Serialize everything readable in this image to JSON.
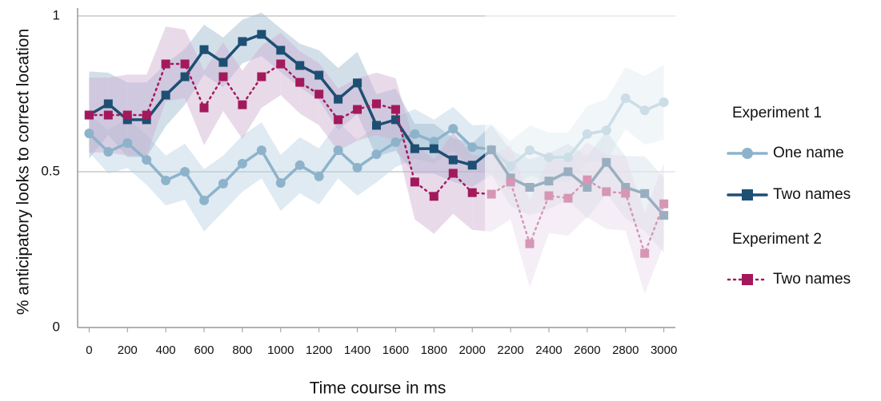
{
  "chart_data": {
    "type": "line",
    "y_label": "% anticipatory looks to correct location",
    "x_label": "Time course in ms",
    "legend_titles": [
      "Experiment 1",
      "Experiment 2"
    ],
    "x": [
      0,
      100,
      200,
      300,
      400,
      500,
      600,
      700,
      800,
      900,
      1000,
      1100,
      1200,
      1300,
      1400,
      1500,
      1600,
      1700,
      1800,
      1900,
      2000,
      2100,
      2200,
      2300,
      2400,
      2500,
      2600,
      2700,
      2800,
      2900,
      3000
    ],
    "series": [
      {
        "name": "One name",
        "color": "#8db3cb",
        "band_color": "#b9d1e3",
        "marker": "circle",
        "dashed": false,
        "values": [
          0.623,
          0.564,
          0.592,
          0.538,
          0.472,
          0.5,
          0.408,
          0.462,
          0.526,
          0.569,
          0.464,
          0.521,
          0.485,
          0.569,
          0.513,
          0.556,
          0.595,
          0.621,
          0.597,
          0.638,
          0.579,
          0.572,
          0.518,
          0.569,
          0.546,
          0.546,
          0.621,
          0.633,
          0.736,
          0.697,
          0.723
        ],
        "error": [
          0.06,
          0.07,
          0.08,
          0.08,
          0.08,
          0.09,
          0.1,
          0.09,
          0.09,
          0.09,
          0.09,
          0.09,
          0.09,
          0.09,
          0.09,
          0.09,
          0.08,
          0.08,
          0.07,
          0.07,
          0.07,
          0.08,
          0.08,
          0.08,
          0.08,
          0.08,
          0.09,
          0.1,
          0.1,
          0.11,
          0.12
        ]
      },
      {
        "name": "Two names",
        "color": "#1d4f73",
        "band_color": "#9cb8cf",
        "marker": "square",
        "dashed": false,
        "values": [
          0.682,
          0.718,
          0.667,
          0.667,
          0.746,
          0.805,
          0.892,
          0.851,
          0.918,
          0.941,
          0.89,
          0.841,
          0.81,
          0.733,
          0.785,
          0.649,
          0.667,
          0.574,
          0.574,
          0.538,
          0.521,
          0.57,
          0.48,
          0.45,
          0.47,
          0.5,
          0.45,
          0.53,
          0.45,
          0.43,
          0.36
        ],
        "error": [
          0.14,
          0.1,
          0.12,
          0.12,
          0.1,
          0.09,
          0.08,
          0.08,
          0.07,
          0.07,
          0.07,
          0.07,
          0.08,
          0.1,
          0.1,
          0.1,
          0.1,
          0.08,
          0.08,
          0.07,
          0.07,
          0.08,
          0.09,
          0.09,
          0.09,
          0.09,
          0.1,
          0.1,
          0.1,
          0.12,
          0.12
        ]
      },
      {
        "name": "Two names",
        "color": "#a3195b",
        "band_color": "#cfaed0",
        "marker": "square",
        "dashed": true,
        "values": [
          0.682,
          0.682,
          0.682,
          0.682,
          0.846,
          0.846,
          0.705,
          0.805,
          0.715,
          0.805,
          0.846,
          0.787,
          0.749,
          0.667,
          0.7,
          0.718,
          0.7,
          0.467,
          0.421,
          0.495,
          0.433,
          0.428,
          0.467,
          0.269,
          0.423,
          0.415,
          0.474,
          0.436,
          0.431,
          0.238,
          0.397
        ],
        "error": [
          0.12,
          0.12,
          0.13,
          0.13,
          0.12,
          0.11,
          0.12,
          0.11,
          0.11,
          0.1,
          0.1,
          0.1,
          0.1,
          0.1,
          0.1,
          0.1,
          0.1,
          0.12,
          0.12,
          0.13,
          0.12,
          0.12,
          0.12,
          0.14,
          0.12,
          0.12,
          0.12,
          0.12,
          0.12,
          0.13,
          0.13
        ]
      }
    ],
    "xlim": [
      -60,
      3060
    ],
    "ylim": [
      0,
      1
    ],
    "xticks": [
      0,
      200,
      400,
      600,
      800,
      1000,
      1200,
      1400,
      1600,
      1800,
      2000,
      2200,
      2400,
      2600,
      2800,
      3000
    ],
    "yticks": [
      0,
      0.5,
      1
    ],
    "grid": true
  }
}
